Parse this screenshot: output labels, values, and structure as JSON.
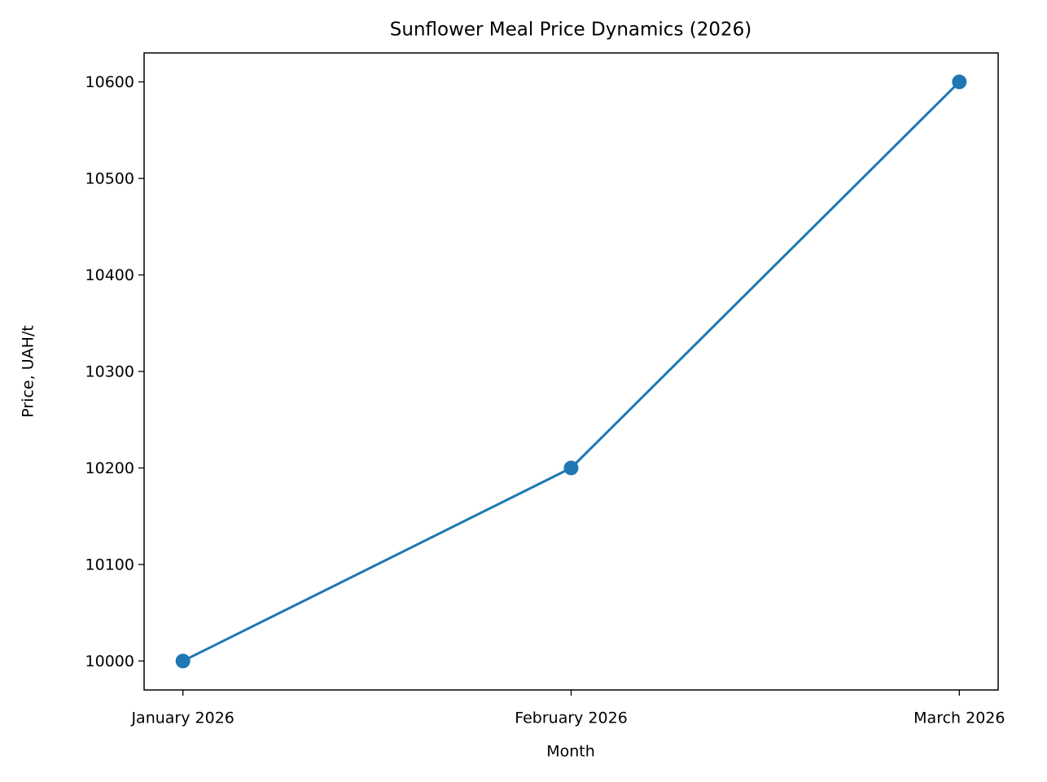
{
  "chart_data": {
    "type": "line",
    "title": "Sunflower Meal Price Dynamics (2026)",
    "x_label": "Month",
    "y_label": "Price, UAH/t",
    "categories": [
      "January 2026",
      "February 2026",
      "March 2026"
    ],
    "series": [
      {
        "name": "Price",
        "color": "#1f77b4",
        "values": [
          10000,
          10200,
          10600
        ]
      }
    ],
    "ylim": [
      9970,
      10630
    ],
    "yticks": [
      10000,
      10100,
      10200,
      10300,
      10400,
      10500,
      10600
    ],
    "grid": false
  }
}
